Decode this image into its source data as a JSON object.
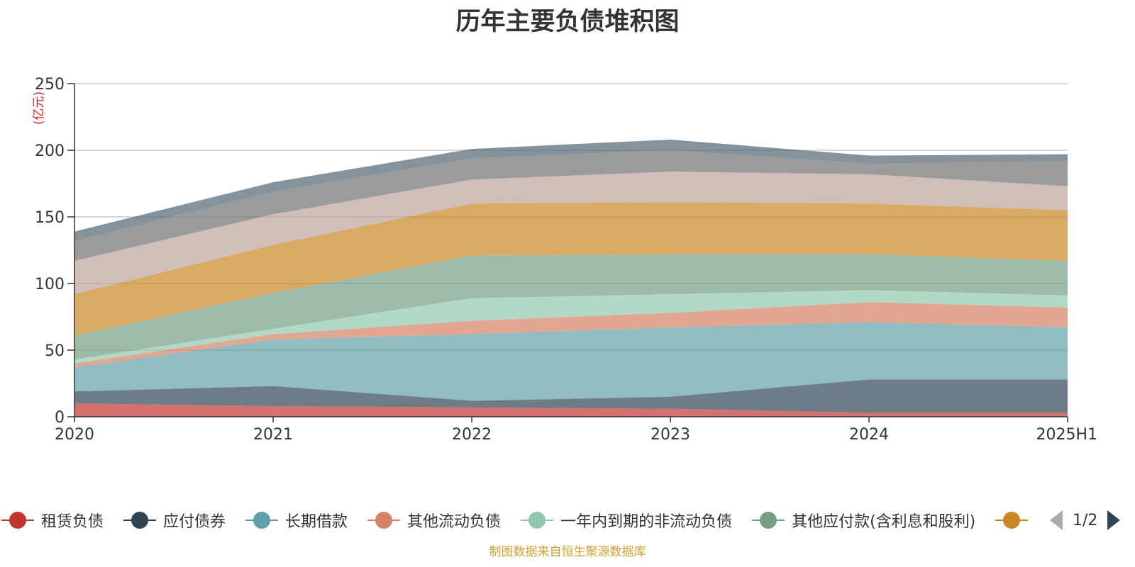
{
  "chart_data": {
    "type": "area",
    "stacked": true,
    "title": "历年主要负债堆积图",
    "y_unit": "(亿元)",
    "categories": [
      "2020",
      "2021",
      "2022",
      "2023",
      "2024",
      "2025H1"
    ],
    "ylim": [
      0,
      250
    ],
    "yticks": [
      0,
      50,
      100,
      150,
      200,
      250
    ],
    "grid": true,
    "series": [
      {
        "name": "租赁负债",
        "color": "#c23531",
        "values": [
          10,
          8,
          7,
          6,
          3,
          3
        ]
      },
      {
        "name": "应付债券",
        "color": "#2f4554",
        "values": [
          9,
          15,
          5,
          9,
          25,
          25
        ]
      },
      {
        "name": "长期借款",
        "color": "#61a0a8",
        "values": [
          18,
          35,
          50,
          52,
          43,
          39
        ]
      },
      {
        "name": "其他流动负债",
        "color": "#d48265",
        "values": [
          3,
          4,
          10,
          11,
          15,
          15
        ]
      },
      {
        "name": "一年内到期的非流动负债",
        "color": "#91c7ae",
        "values": [
          3,
          4,
          17,
          14,
          9,
          9
        ]
      },
      {
        "name": "其他应付款(含利息和股利)",
        "color": "#749f83",
        "values": [
          18,
          27,
          32,
          30,
          27,
          26
        ]
      },
      {
        "name": "",
        "color": "#ca8622",
        "values": [
          31,
          36,
          39,
          39,
          38,
          38
        ]
      },
      {
        "name": "",
        "color": "#bda29a",
        "values": [
          25,
          23,
          18,
          23,
          22,
          18
        ]
      },
      {
        "name": "",
        "color": "#6e7074",
        "values": [
          15,
          17,
          16,
          16,
          8,
          19
        ]
      },
      {
        "name": "",
        "color": "#546570",
        "values": [
          7,
          7,
          7,
          8,
          6,
          5
        ]
      }
    ]
  },
  "legend": {
    "visible_items": [
      {
        "name": "租赁负债",
        "color": "#c23531"
      },
      {
        "name": "应付债券",
        "color": "#2f4554"
      },
      {
        "name": "长期借款",
        "color": "#61a0a8"
      },
      {
        "name": "其他流动负债",
        "color": "#d48265"
      },
      {
        "name": "一年内到期的非流动负债",
        "color": "#91c7ae"
      },
      {
        "name": "其他应付款(含利息和股利)",
        "color": "#749f83"
      },
      {
        "name": "",
        "color": "#ca8622"
      }
    ],
    "page_indicator": "1/2"
  },
  "source_note": "制图数据来自恒生聚源数据库"
}
